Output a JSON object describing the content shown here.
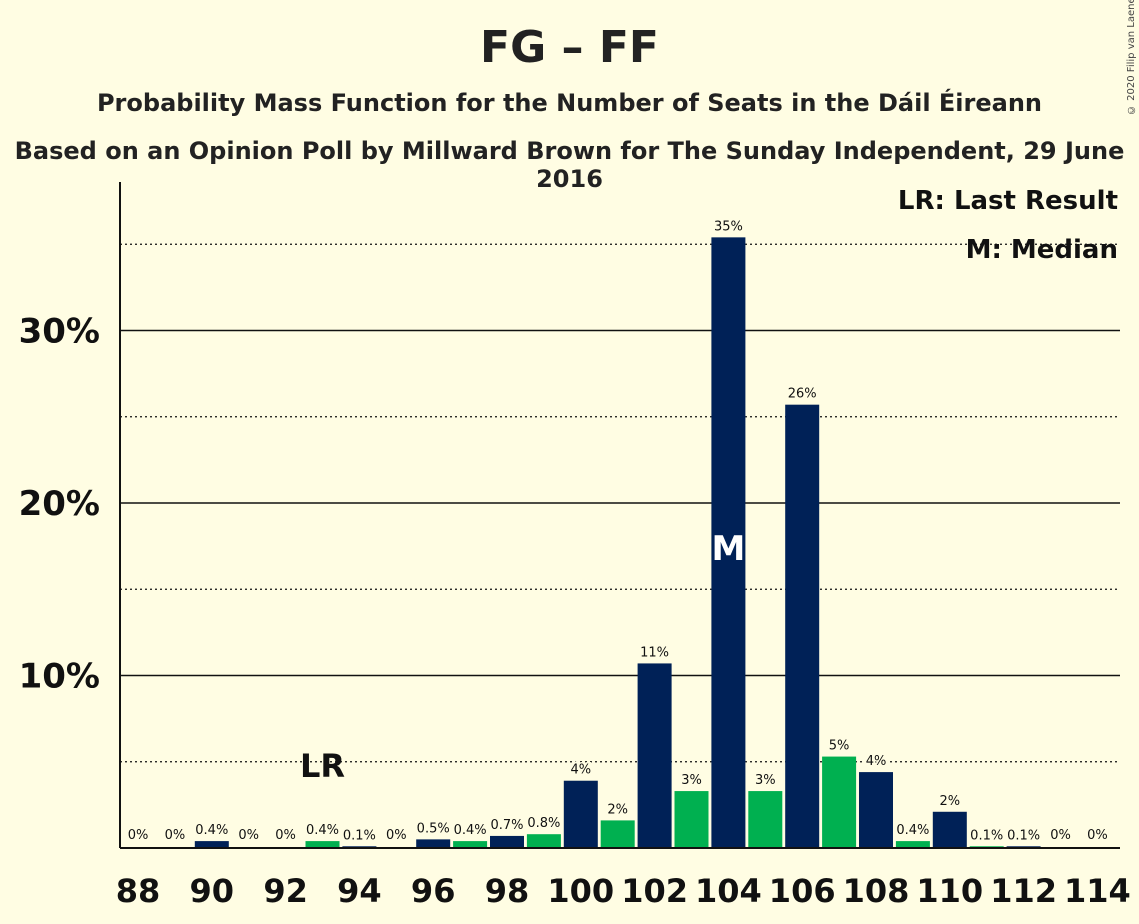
{
  "title": "FG – FF",
  "subtitle": "Probability Mass Function for the Number of Seats in the Dáil Éireann",
  "subsubtitle": "Based on an Opinion Poll by Millward Brown for The Sunday Independent, 29 June 2016",
  "copyright": "© 2020 Filip van Laenen",
  "legend": {
    "last_result": "LR: Last Result",
    "median": "M: Median"
  },
  "colors": {
    "background": "#FFFDE3",
    "navy": "#002157",
    "green": "#00B050"
  },
  "chart_data": {
    "type": "bar",
    "x": [
      88,
      89,
      90,
      91,
      92,
      93,
      94,
      95,
      96,
      97,
      98,
      99,
      100,
      101,
      102,
      103,
      104,
      105,
      106,
      107,
      108,
      109,
      110,
      111,
      112,
      113,
      114
    ],
    "values": [
      0,
      0,
      0.4,
      0,
      0,
      0.4,
      0.1,
      0,
      0.5,
      0.4,
      0.7,
      0.8,
      3.9,
      1.6,
      10.7,
      3.3,
      35.4,
      3.3,
      25.7,
      5.3,
      4.4,
      0.4,
      2.1,
      0.1,
      0.1,
      0,
      0
    ],
    "data_labels": [
      "0%",
      "0%",
      "0.4%",
      "0%",
      "0%",
      "0.4%",
      "0.1%",
      "0%",
      "0.5%",
      "0.4%",
      "0.7%",
      "0.8%",
      "4%",
      "2%",
      "11%",
      "3%",
      "35%",
      "3%",
      "26%",
      "5%",
      "4%",
      "0.4%",
      "2%",
      "0.1%",
      "0.1%",
      "0%",
      "0%"
    ],
    "bar_colors": [
      "navy",
      "green",
      "navy",
      "green",
      "navy",
      "green",
      "navy",
      "green",
      "navy",
      "green",
      "navy",
      "green",
      "navy",
      "green",
      "navy",
      "green",
      "navy",
      "green",
      "navy",
      "green",
      "navy",
      "green",
      "navy",
      "green",
      "navy",
      "green",
      "navy"
    ],
    "x_ticks": [
      "88",
      "90",
      "92",
      "94",
      "96",
      "98",
      "100",
      "102",
      "104",
      "106",
      "108",
      "110",
      "112",
      "114"
    ],
    "y_ticks": [
      "10%",
      "20%",
      "30%"
    ],
    "ylim": [
      0,
      38
    ],
    "major_grid": [
      10,
      20,
      30
    ],
    "minor_grid": [
      5,
      15,
      25,
      35
    ],
    "last_result": {
      "x": 93,
      "label": "LR"
    },
    "median": {
      "x": 104,
      "label": "M"
    },
    "legend_position": "top-right"
  }
}
